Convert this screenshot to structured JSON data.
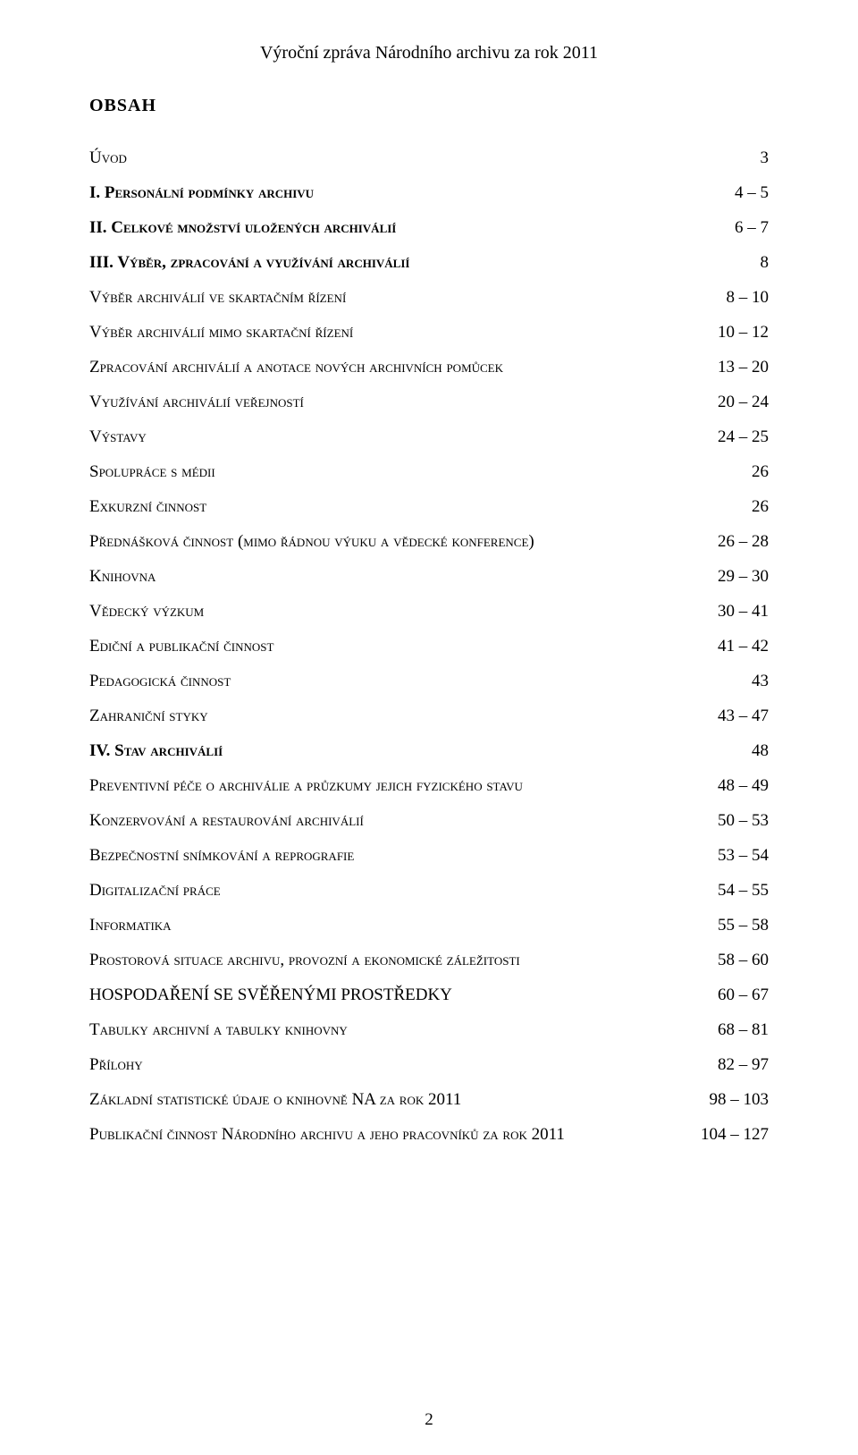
{
  "document": {
    "header_title": "Výroční zpráva Národního archivu za rok 2011",
    "obsah_heading": "OBSAH",
    "page_number": "2"
  },
  "toc": {
    "items": [
      {
        "label": "Úvod",
        "page": "3",
        "bold": false,
        "upper": false
      },
      {
        "label": "I. Personální podmínky archivu",
        "page": "4 – 5",
        "bold": true,
        "upper": false
      },
      {
        "label": "II. Celkové množství uložených archiválií",
        "page": "6 – 7",
        "bold": true,
        "upper": false
      },
      {
        "label": "III. Výběr, zpracování a využívání archiválií",
        "page": "8",
        "bold": true,
        "upper": false
      },
      {
        "label": "Výběr archiválií ve skartačním řízení",
        "page": "8 – 10",
        "bold": false,
        "upper": false
      },
      {
        "label": "Výběr archiválií mimo skartační řízení",
        "page": "10 – 12",
        "bold": false,
        "upper": false
      },
      {
        "label": "Zpracování archiválií a anotace nových archivních pomůcek",
        "page": "13 – 20",
        "bold": false,
        "upper": false
      },
      {
        "label": "Využívání archiválií veřejností",
        "page": "20 – 24",
        "bold": false,
        "upper": false
      },
      {
        "label": "Výstavy",
        "page": "24 – 25",
        "bold": false,
        "upper": false
      },
      {
        "label": "Spolupráce s médii",
        "page": "26",
        "bold": false,
        "upper": false
      },
      {
        "label": "Exkurzní činnost",
        "page": "26",
        "bold": false,
        "upper": false
      },
      {
        "label": "Přednášková činnost (mimo řádnou výuku a vědecké konference)",
        "page": "26 – 28",
        "bold": false,
        "upper": false
      },
      {
        "label": "Knihovna",
        "page": "29 – 30",
        "bold": false,
        "upper": false
      },
      {
        "label": "Vědecký výzkum",
        "page": "30 – 41",
        "bold": false,
        "upper": false
      },
      {
        "label": "Ediční a publikační činnost",
        "page": "41 – 42",
        "bold": false,
        "upper": false
      },
      {
        "label": "Pedagogická činnost",
        "page": "43",
        "bold": false,
        "upper": false
      },
      {
        "label": "Zahraniční styky",
        "page": "43 – 47",
        "bold": false,
        "upper": false
      },
      {
        "label": "IV. Stav archiválií",
        "page": "48",
        "bold": true,
        "upper": false
      },
      {
        "label": "Preventivní péče o archiválie a průzkumy jejich fyzického stavu",
        "page": "48 – 49",
        "bold": false,
        "upper": false
      },
      {
        "label": "Konzervování a restaurování archiválií",
        "page": "50 – 53",
        "bold": false,
        "upper": false
      },
      {
        "label": "Bezpečnostní snímkování a reprografie",
        "page": "53 – 54",
        "bold": false,
        "upper": false
      },
      {
        "label": "Digitalizační práce",
        "page": "54 – 55",
        "bold": false,
        "upper": false
      },
      {
        "label": "Informatika",
        "page": "55 – 58",
        "bold": false,
        "upper": false
      },
      {
        "label": "Prostorová situace archivu, provozní a ekonomické záležitosti",
        "page": "58 – 60",
        "bold": false,
        "upper": false
      },
      {
        "label": "hospodaření se svěřenými prostředky",
        "page": "60 – 67",
        "bold": false,
        "upper": true
      },
      {
        "label": "Tabulky archivní a tabulky knihovny",
        "page": "68 – 81",
        "bold": false,
        "upper": false
      },
      {
        "label": "Přílohy",
        "page": "82 – 97",
        "bold": false,
        "upper": false
      },
      {
        "label": "Základní statistické údaje o knihovně NA za rok 2011",
        "page": "98 – 103",
        "bold": false,
        "upper": false
      },
      {
        "label": "Publikační činnost Národního archivu a jeho pracovníků za rok 2011",
        "page": "104 – 127",
        "bold": false,
        "upper": false
      }
    ]
  }
}
